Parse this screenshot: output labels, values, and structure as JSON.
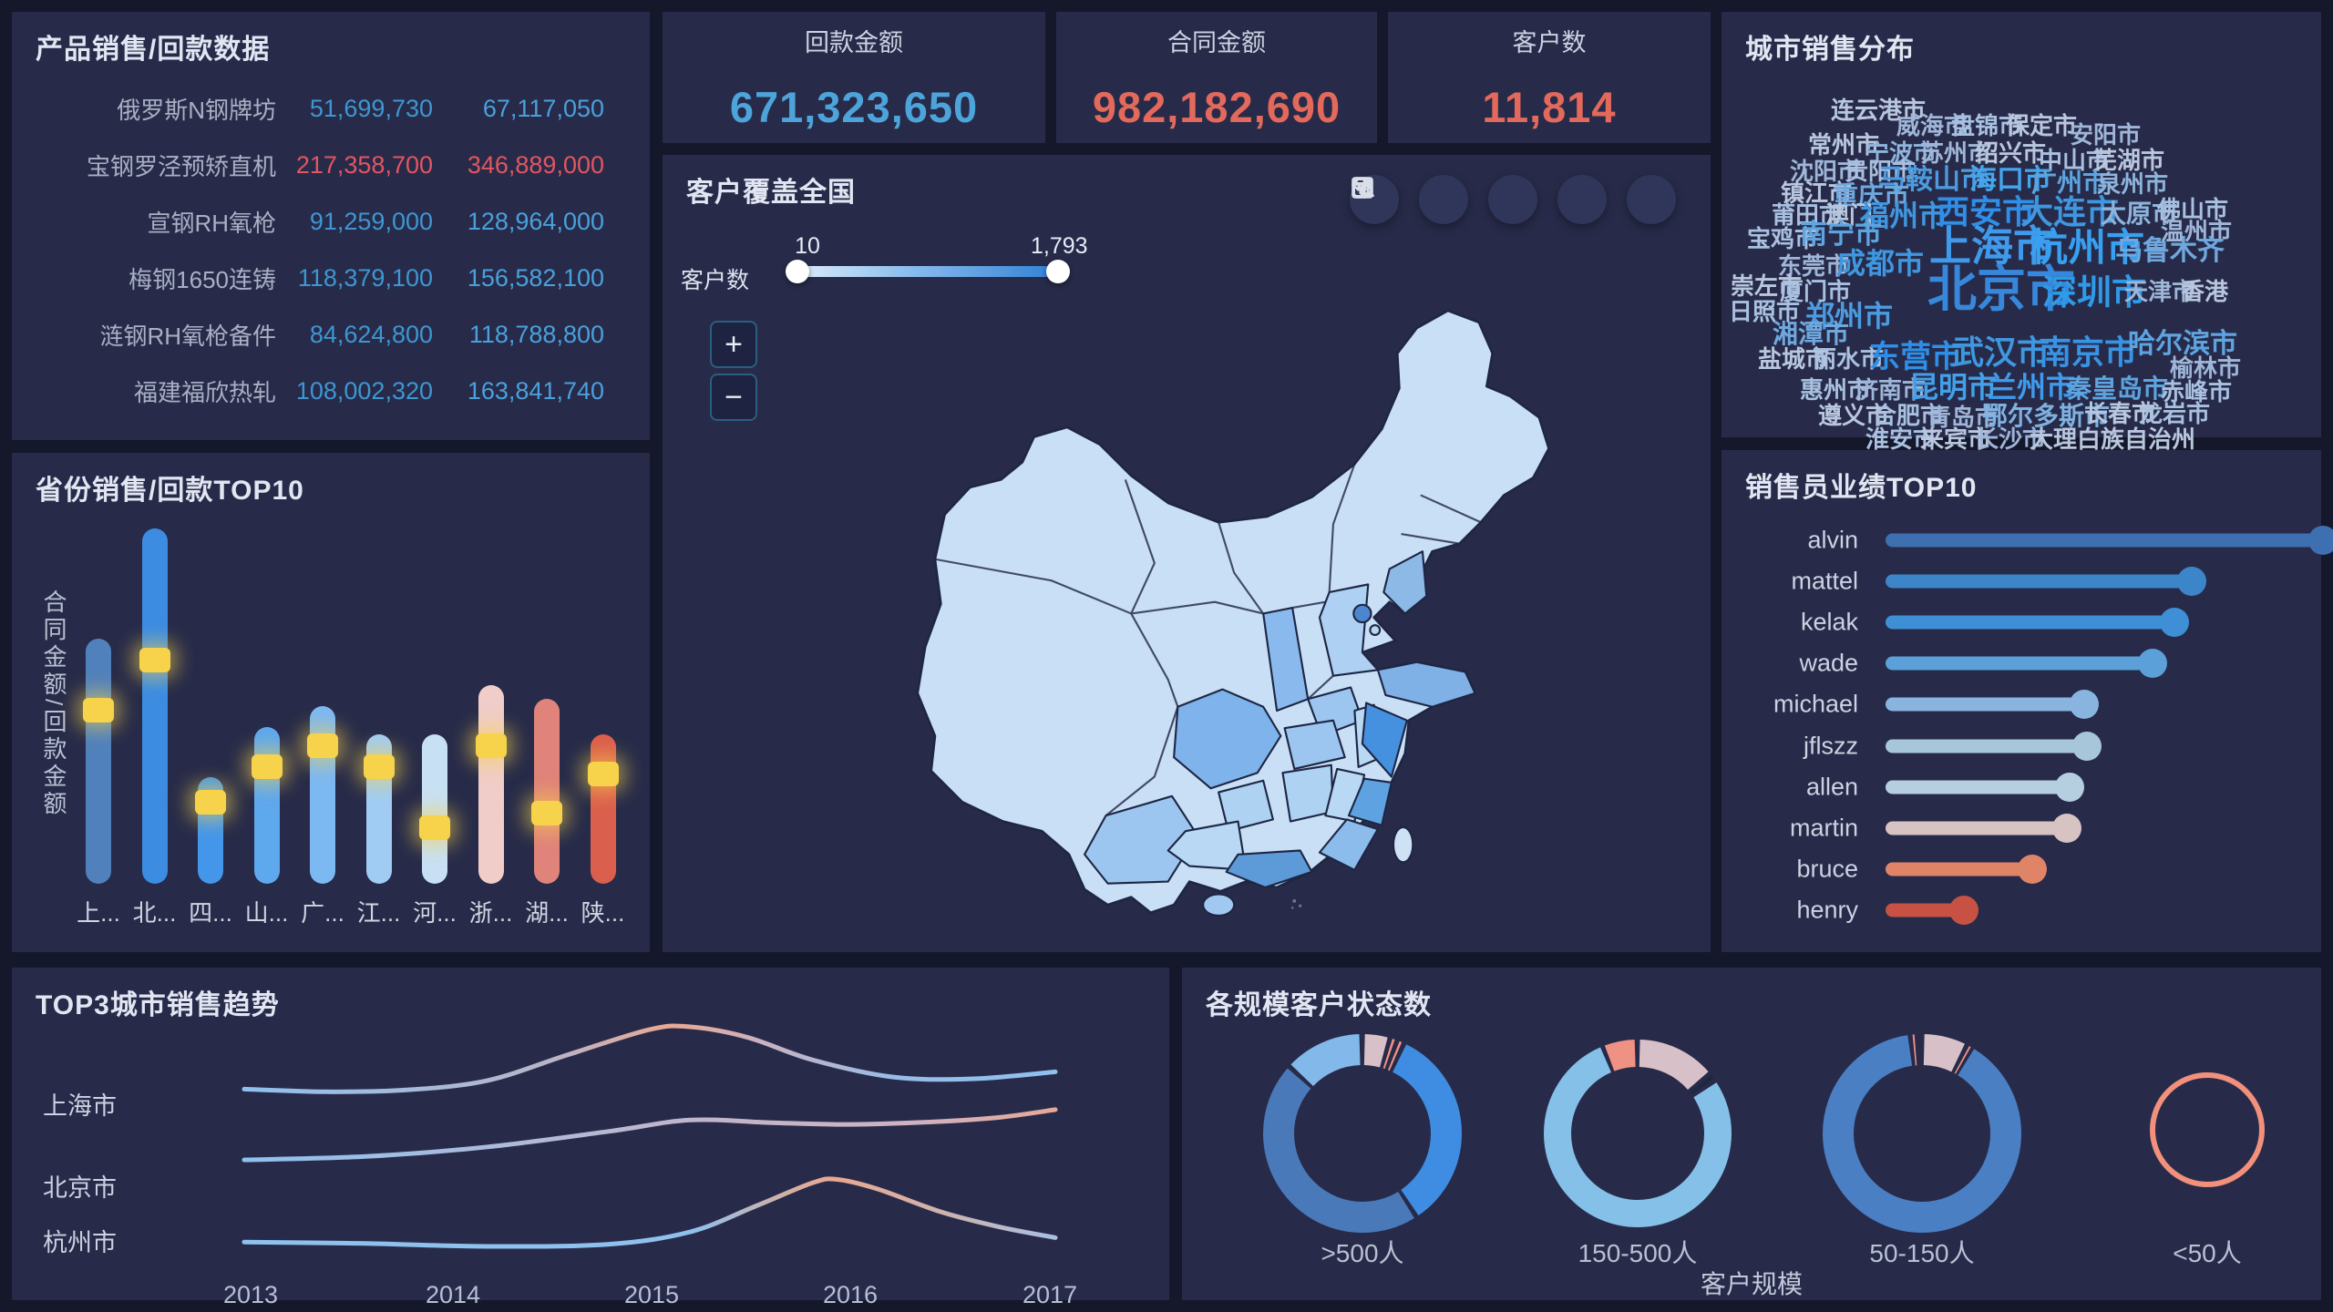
{
  "product_table": {
    "title": "产品销售/回款数据",
    "rows": [
      {
        "label": "俄罗斯N钢牌坊",
        "sales": "51,699,730",
        "payment": "67,117,050",
        "highlight": false
      },
      {
        "label": "宝钢罗泾预矫直机",
        "sales": "217,358,700",
        "payment": "346,889,000",
        "highlight": true
      },
      {
        "label": "宣钢RH氧枪",
        "sales": "91,259,000",
        "payment": "128,964,000",
        "highlight": false
      },
      {
        "label": "梅钢1650连铸",
        "sales": "118,379,100",
        "payment": "156,582,100",
        "highlight": false
      },
      {
        "label": "涟钢RH氧枪备件",
        "sales": "84,624,800",
        "payment": "118,788,800",
        "highlight": false
      },
      {
        "label": "福建福欣热轧",
        "sales": "108,002,320",
        "payment": "163,841,740",
        "highlight": false
      }
    ],
    "colors": {
      "sales": "#3e96d2",
      "payment": "#4aa0dc",
      "highlight": "#e35561",
      "label": "#a9afc4"
    }
  },
  "kpis": [
    {
      "label": "回款金额",
      "value": "671,323,650",
      "color": "#4da4da"
    },
    {
      "label": "合同金额",
      "value": "982,182,690",
      "color": "#e2695b"
    },
    {
      "label": "客户数",
      "value": "11,814",
      "color": "#e2695b"
    }
  ],
  "map": {
    "title": "客户覆盖全国",
    "slider": {
      "label": "客户数",
      "min": "10",
      "max": "1,793"
    },
    "zoom_in": "+",
    "zoom_out": "−",
    "toolbar_icons": [
      "undo-icon",
      "expand-icon",
      "filter-icon",
      "data-view-icon",
      "export-icon"
    ]
  },
  "wordcloud": {
    "title": "城市销售分布",
    "words": [
      [
        "连云港市",
        120,
        95,
        26,
        "#b9c7de"
      ],
      [
        "威海市",
        192,
        112,
        26,
        "#9fb6d8"
      ],
      [
        "盘锦市",
        252,
        112,
        26,
        "#a9c0e0"
      ],
      [
        "保定市",
        312,
        112,
        26,
        "#b9c7de"
      ],
      [
        "安阳市",
        382,
        122,
        26,
        "#9fb6d8"
      ],
      [
        "常州市",
        95,
        133,
        26,
        "#b9c7de"
      ],
      [
        "宁波市",
        158,
        142,
        26,
        "#8fb4dc"
      ],
      [
        "苏州市",
        218,
        142,
        26,
        "#9fb6d8"
      ],
      [
        "绍兴市",
        278,
        142,
        26,
        "#b9c7de"
      ],
      [
        "中山市",
        348,
        150,
        26,
        "#a9c0e0"
      ],
      [
        "芜湖市",
        408,
        150,
        26,
        "#b9c7de"
      ],
      [
        "沈阳市",
        75,
        162,
        26,
        "#9fb6d8"
      ],
      [
        "贵阳市",
        135,
        162,
        26,
        "#a9c0e0"
      ],
      [
        "马鞍山市",
        172,
        170,
        30,
        "#4c9be0"
      ],
      [
        "海口市",
        272,
        170,
        30,
        "#44a6ec"
      ],
      [
        "广州市",
        340,
        174,
        28,
        "#5ea4e0"
      ],
      [
        "泉州市",
        412,
        176,
        26,
        "#8fb4dc"
      ],
      [
        "镇江市",
        65,
        186,
        26,
        "#b9c7de"
      ],
      [
        "重庆市",
        122,
        188,
        28,
        "#6fa8de"
      ],
      [
        "莆田市",
        55,
        210,
        26,
        "#a9c0e0"
      ],
      [
        "澳门",
        114,
        210,
        26,
        "#b9c7de"
      ],
      [
        "福州市",
        152,
        208,
        32,
        "#3f97e0"
      ],
      [
        "西安市",
        236,
        202,
        36,
        "#2f8fe8"
      ],
      [
        "大连市",
        328,
        202,
        36,
        "#3f97e0"
      ],
      [
        "太原市",
        416,
        208,
        28,
        "#8fb4dc"
      ],
      [
        "佛山市",
        478,
        204,
        26,
        "#a9c0e0"
      ],
      [
        "温州市",
        482,
        228,
        26,
        "#9fb6d8"
      ],
      [
        "宝鸡市",
        28,
        236,
        26,
        "#a9c0e0"
      ],
      [
        "南宁市",
        86,
        230,
        30,
        "#5ea4e0"
      ],
      [
        "上海市",
        228,
        234,
        46,
        "#3f9aec"
      ],
      [
        "杭州市",
        338,
        238,
        42,
        "#38a0f0"
      ],
      [
        "乌鲁木齐",
        432,
        248,
        30,
        "#6fa8de"
      ],
      [
        "东莞市",
        62,
        266,
        26,
        "#9fb6d8"
      ],
      [
        "成都市",
        126,
        260,
        32,
        "#3f97e0"
      ],
      [
        "崇左市",
        10,
        288,
        26,
        "#b9c7de"
      ],
      [
        "厦门市",
        64,
        294,
        26,
        "#a9c0e0"
      ],
      [
        "北京市",
        226,
        278,
        54,
        "#3788dc"
      ],
      [
        "深圳市",
        352,
        290,
        38,
        "#2f9ae8"
      ],
      [
        "天津市",
        442,
        294,
        26,
        "#9fb6d8"
      ],
      [
        "香港",
        504,
        294,
        26,
        "#b9c7de"
      ],
      [
        "日照市",
        8,
        316,
        26,
        "#a9c0e0"
      ],
      [
        "郑州市",
        92,
        318,
        32,
        "#4c9be0"
      ],
      [
        "湘潭市",
        56,
        340,
        28,
        "#6fa8de"
      ],
      [
        "盐城市",
        40,
        368,
        26,
        "#b9c7de"
      ],
      [
        "丽水市",
        100,
        368,
        26,
        "#a9c0e0"
      ],
      [
        "东营市",
        162,
        362,
        34,
        "#2f8fe8"
      ],
      [
        "武汉市",
        252,
        356,
        36,
        "#3f97e0"
      ],
      [
        "南京市",
        348,
        356,
        36,
        "#3893e4"
      ],
      [
        "哈尔滨市",
        446,
        350,
        30,
        "#5ea4e0"
      ],
      [
        "榆林市",
        492,
        378,
        26,
        "#9fb6d8"
      ],
      [
        "惠州市",
        86,
        402,
        26,
        "#a9c0e0"
      ],
      [
        "济南市",
        146,
        402,
        26,
        "#9fb6d8"
      ],
      [
        "昆明市",
        206,
        396,
        32,
        "#44a0e8"
      ],
      [
        "兰州市",
        292,
        396,
        32,
        "#3f9aec"
      ],
      [
        "秦皇岛市",
        378,
        400,
        28,
        "#5ea4e0"
      ],
      [
        "赤峰市",
        482,
        404,
        26,
        "#a9c0e0"
      ],
      [
        "遵义市",
        106,
        430,
        26,
        "#b9c7de"
      ],
      [
        "合肥市",
        166,
        430,
        26,
        "#a9c0e0"
      ],
      [
        "青岛市",
        226,
        432,
        26,
        "#9fb6d8"
      ],
      [
        "鄂尔多斯市",
        286,
        430,
        28,
        "#7fb0e0"
      ],
      [
        "长春市",
        398,
        428,
        26,
        "#b9c7de"
      ],
      [
        "龙岩市",
        458,
        428,
        26,
        "#a9c0e0"
      ],
      [
        "淮安市",
        158,
        456,
        26,
        "#a9c0e0"
      ],
      [
        "来宾市",
        218,
        456,
        26,
        "#b9c7de"
      ],
      [
        "长沙市",
        278,
        456,
        26,
        "#9fb4d8"
      ],
      [
        "大理白族自治州",
        338,
        456,
        26,
        "#b9c7de"
      ]
    ]
  },
  "sales_top10": {
    "title": "销售员业绩TOP10",
    "categories": [
      "alvin",
      "mattel",
      "kelak",
      "wade",
      "michael",
      "jflszz",
      "allen",
      "martin",
      "bruce",
      "henry"
    ],
    "values": [
      1.0,
      0.7,
      0.66,
      0.61,
      0.455,
      0.46,
      0.42,
      0.415,
      0.335,
      0.18
    ],
    "colors": [
      "#3e6fb0",
      "#3d85c9",
      "#3e8fd6",
      "#5ba0d8",
      "#8ab4e0",
      "#a8c6da",
      "#b5cfe0",
      "#d8c3c3",
      "#e08468",
      "#c75244"
    ]
  },
  "province_top10": {
    "title": "省份销售/回款TOP10",
    "ylabel": "合同金额/回款金额",
    "categories": [
      "上...",
      "北...",
      "四...",
      "山...",
      "广...",
      "江...",
      "河...",
      "浙...",
      "湖...",
      "陕..."
    ],
    "contract": [
      69,
      100,
      30,
      44,
      50,
      42,
      42,
      56,
      52,
      42
    ],
    "payment": [
      49,
      63,
      23,
      33,
      39,
      33,
      16,
      39,
      20,
      31
    ],
    "colors": [
      "#5181bc",
      "#3c8ce2",
      "#4496ea",
      "#5ea8ee",
      "#7cb8f2",
      "#a0ccf4",
      "#c8e0f4",
      "#f0cdc8",
      "#e0837a",
      "#db5f4d"
    ],
    "marker_color": "#f7d24b"
  },
  "trend": {
    "title": "TOP3城市销售趋势",
    "x_ticks": [
      "2013",
      "2014",
      "2015",
      "2016",
      "2017"
    ],
    "series": [
      {
        "name": "上海市",
        "points": [
          [
            0,
            0.28
          ],
          [
            0.1,
            0.25
          ],
          [
            0.2,
            0.27
          ],
          [
            0.3,
            0.38
          ],
          [
            0.4,
            0.68
          ],
          [
            0.5,
            0.97
          ],
          [
            0.55,
            1.0
          ],
          [
            0.62,
            0.88
          ],
          [
            0.7,
            0.62
          ],
          [
            0.8,
            0.42
          ],
          [
            0.9,
            0.4
          ],
          [
            1,
            0.48
          ]
        ],
        "stops": [
          [
            0,
            "#8fc1ee"
          ],
          [
            0.38,
            "#b9b4c8"
          ],
          [
            0.52,
            "#eaa892"
          ],
          [
            0.64,
            "#c9b2c0"
          ],
          [
            0.8,
            "#98bce8"
          ],
          [
            1,
            "#8fc1ee"
          ]
        ]
      },
      {
        "name": "北京市",
        "points": [
          [
            0,
            0.41
          ],
          [
            0.15,
            0.45
          ],
          [
            0.3,
            0.56
          ],
          [
            0.45,
            0.74
          ],
          [
            0.55,
            0.87
          ],
          [
            0.65,
            0.84
          ],
          [
            0.75,
            0.82
          ],
          [
            0.85,
            0.85
          ],
          [
            0.93,
            0.9
          ],
          [
            1,
            0.99
          ]
        ],
        "stops": [
          [
            0,
            "#8fc1ee"
          ],
          [
            0.45,
            "#b9b8d2"
          ],
          [
            0.62,
            "#c4b4c8"
          ],
          [
            0.82,
            "#cdb2c2"
          ],
          [
            1,
            "#e7a898"
          ]
        ]
      },
      {
        "name": "杭州市",
        "points": [
          [
            0,
            0.11
          ],
          [
            0.15,
            0.09
          ],
          [
            0.3,
            0.05
          ],
          [
            0.45,
            0.08
          ],
          [
            0.55,
            0.25
          ],
          [
            0.63,
            0.6
          ],
          [
            0.7,
            0.92
          ],
          [
            0.73,
            0.97
          ],
          [
            0.78,
            0.84
          ],
          [
            0.86,
            0.52
          ],
          [
            0.93,
            0.32
          ],
          [
            1,
            0.17
          ]
        ],
        "stops": [
          [
            0,
            "#8fc1ee"
          ],
          [
            0.55,
            "#8fc1ee"
          ],
          [
            0.68,
            "#d9ae9e"
          ],
          [
            0.73,
            "#eaa892"
          ],
          [
            0.84,
            "#d4b0a8"
          ],
          [
            1,
            "#a9bfe2"
          ]
        ]
      }
    ]
  },
  "donuts": {
    "title": "各规模客户状态数",
    "xlabel": "客户规模",
    "categories": [
      ">500人",
      "150-500人",
      "50-150人",
      "<50人"
    ],
    "charts": [
      {
        "segments": [
          {
            "c": "#d8c0c8",
            "v": 4.5
          },
          {
            "c": "#ef9183",
            "v": 1.2
          },
          {
            "c": "#ef9183",
            "v": 1.2
          },
          {
            "c": "#3f8de2",
            "v": 34
          },
          {
            "c": "#4a79ba",
            "v": 46
          },
          {
            "c": "#82b8ea",
            "v": 13.1
          }
        ]
      },
      {
        "segments": [
          {
            "c": "#d8c0c8",
            "v": 14
          },
          {
            "c": "#1e2742",
            "v": 1.5
          },
          {
            "c": "#85c0e8",
            "v": 78.5
          },
          {
            "c": "#ef9183",
            "v": 6
          }
        ]
      },
      {
        "segments": [
          {
            "c": "#d8c0c8",
            "v": 7.5
          },
          {
            "c": "#ef9183",
            "v": 0.9
          },
          {
            "c": "#4a7fc4",
            "v": 89.8
          },
          {
            "c": "#ef9183",
            "v": 0.9
          }
        ]
      },
      {
        "segments": [
          {
            "c": "#f2907c",
            "v": 100
          }
        ],
        "ring": true
      }
    ]
  }
}
